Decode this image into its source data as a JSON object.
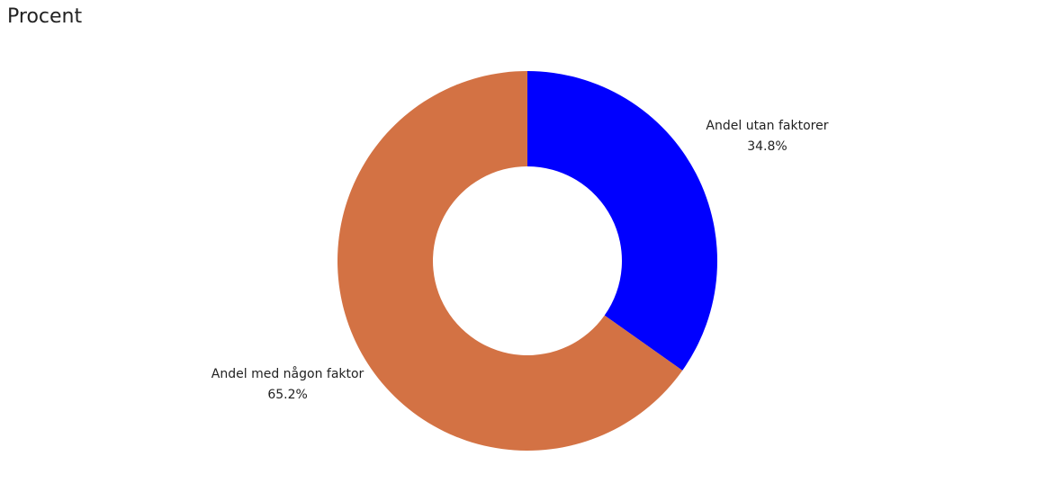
{
  "chart_data": {
    "type": "donut",
    "title": "Procent",
    "categories": [
      "Andel utan faktorer",
      "Andel med någon faktor"
    ],
    "values": [
      34.8,
      65.2
    ],
    "value_labels": [
      "34.8%",
      "65.2%"
    ],
    "colors": [
      "#0000ff",
      "#d37244"
    ]
  }
}
